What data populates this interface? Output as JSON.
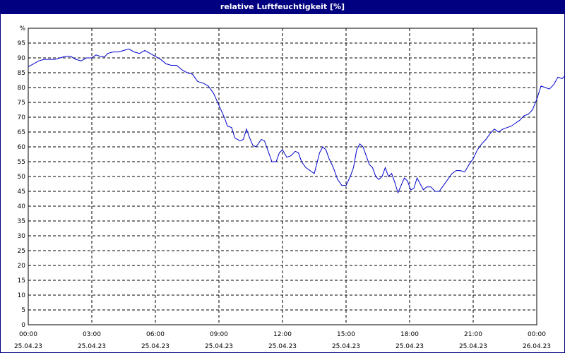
{
  "chart_data": {
    "type": "line",
    "title": "relative Luftfeuchtigkeit [%]",
    "ylabel": "%",
    "ylim": [
      0,
      100
    ],
    "y_ticks": [
      0,
      5,
      10,
      15,
      20,
      25,
      30,
      35,
      40,
      45,
      50,
      55,
      60,
      65,
      70,
      75,
      80,
      85,
      90,
      95
    ],
    "xlim_hours": [
      0,
      24
    ],
    "x_ticks": [
      {
        "hour": 0,
        "time": "00:00",
        "date": "25.04.23"
      },
      {
        "hour": 3,
        "time": "03:00",
        "date": "25.04.23"
      },
      {
        "hour": 6,
        "time": "06:00",
        "date": "25.04.23"
      },
      {
        "hour": 9,
        "time": "09:00",
        "date": "25.04.23"
      },
      {
        "hour": 12,
        "time": "12:00",
        "date": "25.04.23"
      },
      {
        "hour": 15,
        "time": "15:00",
        "date": "25.04.23"
      },
      {
        "hour": 18,
        "time": "18:00",
        "date": "25.04.23"
      },
      {
        "hour": 21,
        "time": "21:00",
        "date": "25.04.23"
      },
      {
        "hour": 24,
        "time": "00:00",
        "date": "26.04.23"
      }
    ],
    "grid": true,
    "line_color": "#0000cc",
    "series": [
      {
        "points": [
          [
            0.0,
            87
          ],
          [
            0.25,
            88
          ],
          [
            0.5,
            89
          ],
          [
            0.75,
            89.5
          ],
          [
            1.0,
            89.5
          ],
          [
            1.25,
            89.5
          ],
          [
            1.5,
            90
          ],
          [
            1.75,
            90.5
          ],
          [
            2.0,
            90.5
          ],
          [
            2.25,
            89.5
          ],
          [
            2.5,
            89
          ],
          [
            2.75,
            90
          ],
          [
            3.0,
            90
          ],
          [
            3.2,
            91
          ],
          [
            3.4,
            90.5
          ],
          [
            3.6,
            90.3
          ],
          [
            3.75,
            91.5
          ],
          [
            4.0,
            92
          ],
          [
            4.25,
            92
          ],
          [
            4.5,
            92.5
          ],
          [
            4.75,
            93
          ],
          [
            5.0,
            92
          ],
          [
            5.25,
            91.5
          ],
          [
            5.5,
            92.5
          ],
          [
            5.75,
            91.5
          ],
          [
            6.0,
            90.5
          ],
          [
            6.25,
            89.5
          ],
          [
            6.5,
            88
          ],
          [
            6.75,
            87.5
          ],
          [
            7.0,
            87.5
          ],
          [
            7.25,
            86
          ],
          [
            7.5,
            85
          ],
          [
            7.75,
            84.5
          ],
          [
            8.0,
            82
          ],
          [
            8.25,
            81.5
          ],
          [
            8.5,
            80.5
          ],
          [
            8.75,
            78
          ],
          [
            9.0,
            74
          ],
          [
            9.25,
            70
          ],
          [
            9.4,
            67
          ],
          [
            9.6,
            66.5
          ],
          [
            9.75,
            63
          ],
          [
            10.0,
            62
          ],
          [
            10.15,
            62.5
          ],
          [
            10.3,
            66
          ],
          [
            10.45,
            63
          ],
          [
            10.6,
            60.5
          ],
          [
            10.75,
            60
          ],
          [
            11.0,
            62.5
          ],
          [
            11.15,
            62
          ],
          [
            11.3,
            59
          ],
          [
            11.5,
            55
          ],
          [
            11.7,
            55
          ],
          [
            11.85,
            58
          ],
          [
            12.0,
            59
          ],
          [
            12.2,
            56.5
          ],
          [
            12.4,
            57
          ],
          [
            12.6,
            58.5
          ],
          [
            12.75,
            58
          ],
          [
            12.9,
            55
          ],
          [
            13.1,
            53
          ],
          [
            13.3,
            52
          ],
          [
            13.5,
            51
          ],
          [
            13.75,
            58
          ],
          [
            13.9,
            60
          ],
          [
            14.05,
            59
          ],
          [
            14.2,
            56
          ],
          [
            14.4,
            53
          ],
          [
            14.6,
            49
          ],
          [
            14.8,
            47
          ],
          [
            15.0,
            47
          ],
          [
            15.2,
            50
          ],
          [
            15.35,
            53
          ],
          [
            15.5,
            59
          ],
          [
            15.65,
            61
          ],
          [
            15.8,
            60
          ],
          [
            15.95,
            57
          ],
          [
            16.1,
            54
          ],
          [
            16.25,
            53
          ],
          [
            16.4,
            50
          ],
          [
            16.55,
            49
          ],
          [
            16.7,
            50
          ],
          [
            16.85,
            53
          ],
          [
            17.0,
            50
          ],
          [
            17.15,
            51
          ],
          [
            17.3,
            48
          ],
          [
            17.45,
            44.5
          ],
          [
            17.6,
            47
          ],
          [
            17.75,
            49.5
          ],
          [
            17.9,
            48.5
          ],
          [
            18.05,
            45.5
          ],
          [
            18.2,
            46
          ],
          [
            18.35,
            49.5
          ],
          [
            18.5,
            47.5
          ],
          [
            18.65,
            45.5
          ],
          [
            18.8,
            46.5
          ],
          [
            19.0,
            46.5
          ],
          [
            19.2,
            45
          ],
          [
            19.4,
            45
          ],
          [
            19.6,
            47
          ],
          [
            19.8,
            49
          ],
          [
            20.0,
            51
          ],
          [
            20.2,
            52
          ],
          [
            20.4,
            52
          ],
          [
            20.6,
            51.5
          ],
          [
            20.8,
            54
          ],
          [
            21.0,
            56
          ],
          [
            21.2,
            59
          ],
          [
            21.4,
            61
          ],
          [
            21.6,
            62.5
          ],
          [
            21.8,
            64.5
          ],
          [
            22.0,
            66
          ],
          [
            22.2,
            65
          ],
          [
            22.4,
            66
          ],
          [
            22.6,
            66.5
          ],
          [
            22.8,
            67
          ],
          [
            23.0,
            68
          ],
          [
            23.2,
            69
          ],
          [
            23.4,
            70.5
          ],
          [
            23.6,
            71
          ],
          [
            23.8,
            72.5
          ],
          [
            24.0,
            76
          ],
          [
            24.2,
            80.5
          ],
          [
            24.4,
            80
          ],
          [
            24.6,
            79.5
          ],
          [
            24.8,
            81
          ],
          [
            25.0,
            83.5
          ],
          [
            25.2,
            83
          ],
          [
            25.4,
            84.5
          ],
          [
            25.6,
            84
          ],
          [
            25.8,
            84
          ]
        ]
      }
    ]
  }
}
